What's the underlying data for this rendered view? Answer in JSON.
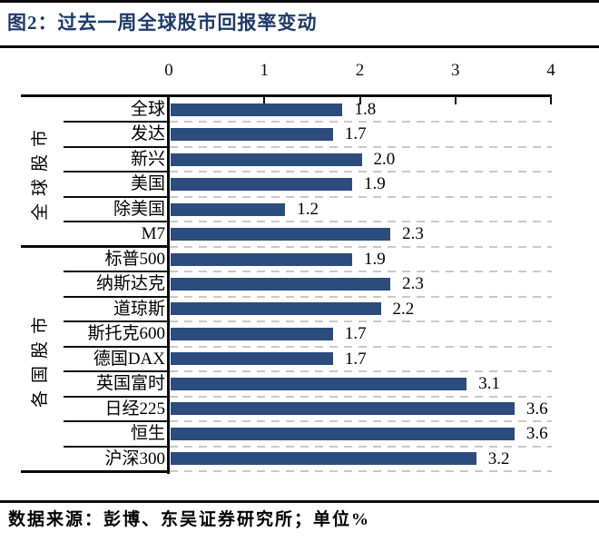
{
  "header": {
    "title": "图2：过去一周全球股市回报率变动"
  },
  "footer": {
    "text": "数据来源：彭博、东吴证券研究所；单位%"
  },
  "colors": {
    "bar": "#2b4c7d",
    "title": "#1e3a68",
    "axis_line": "#0a0a0a",
    "grid_dash": "#c9c9c9",
    "text": "#000000"
  },
  "chart_data": {
    "type": "bar",
    "orientation": "horizontal",
    "title": "过去一周全球股市回报率变动",
    "unit": "%",
    "xlim": [
      0,
      4
    ],
    "x_ticks": [
      "0",
      "1",
      "2",
      "3",
      "4"
    ],
    "grid": "dashed-horizontal",
    "groups": [
      {
        "name": "全球股市",
        "categories": [
          "全球",
          "发达",
          "新兴",
          "美国",
          "除美国",
          "M7"
        ],
        "values": [
          1.8,
          1.7,
          2.0,
          1.9,
          1.2,
          2.3
        ],
        "value_labels": [
          "1.8",
          "1.7",
          "2.0",
          "1.9",
          "1.2",
          "2.3"
        ]
      },
      {
        "name": "各国股市",
        "categories": [
          "标普500",
          "纳斯达克",
          "道琼斯",
          "斯托克600",
          "德国DAX",
          "英国富时",
          "日经225",
          "恒生",
          "沪深300"
        ],
        "values": [
          1.9,
          2.3,
          2.2,
          1.7,
          1.7,
          3.1,
          3.6,
          3.6,
          3.2
        ],
        "value_labels": [
          "1.9",
          "2.3",
          "2.2",
          "1.7",
          "1.7",
          "3.1",
          "3.6",
          "3.6",
          "3.2"
        ]
      }
    ]
  }
}
